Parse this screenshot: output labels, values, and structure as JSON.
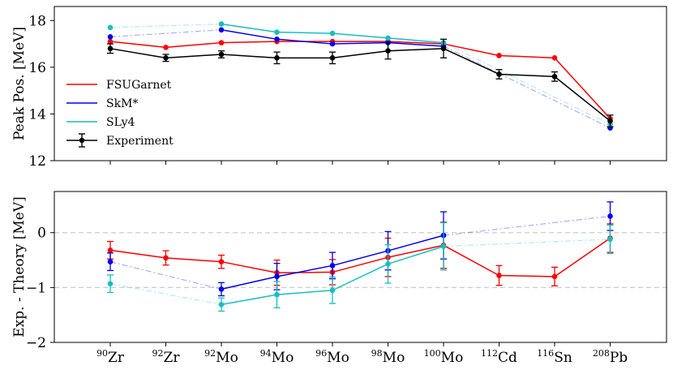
{
  "chart_data": [
    {
      "type": "line",
      "panel": "top",
      "title": "",
      "xlabel": "",
      "ylabel": "Peak Pos. [MeV]",
      "ylim": [
        12,
        18.6
      ],
      "yticks": [
        12,
        14,
        16,
        18
      ],
      "grid": false,
      "legend_position": "middle-left",
      "categories": [
        "90Zr",
        "92Zr",
        "92Mo",
        "94Mo",
        "96Mo",
        "98Mo",
        "100Mo",
        "112Cd",
        "116Sn",
        "208Pb"
      ],
      "series": [
        {
          "name": "FSUGarnet",
          "color": "#ff0000",
          "points": [
            [
              0,
              17.1
            ],
            [
              1,
              16.85
            ],
            [
              2,
              17.05
            ],
            [
              3,
              17.1
            ],
            [
              4,
              17.1
            ],
            [
              5,
              17.1
            ],
            [
              6,
              17.0
            ],
            [
              7,
              16.5
            ],
            [
              8,
              16.4
            ],
            [
              9,
              13.8
            ]
          ],
          "dashed_links": []
        },
        {
          "name": "SkM*",
          "color": "#0000ee",
          "points": [
            [
              0,
              17.3
            ],
            [
              2,
              17.6
            ],
            [
              3,
              17.2
            ],
            [
              4,
              17.0
            ],
            [
              5,
              17.05
            ],
            [
              6,
              16.9
            ],
            [
              9,
              13.4
            ]
          ],
          "dashed_links": [
            [
              0,
              2
            ],
            [
              6,
              9
            ]
          ]
        },
        {
          "name": "SLy4",
          "color": "#17bfbf",
          "points": [
            [
              0,
              17.7
            ],
            [
              2,
              17.85
            ],
            [
              3,
              17.5
            ],
            [
              4,
              17.45
            ],
            [
              5,
              17.25
            ],
            [
              6,
              17.05
            ],
            [
              9,
              13.55
            ]
          ],
          "dashed_links": [
            [
              0,
              2
            ],
            [
              6,
              9
            ]
          ]
        },
        {
          "name": "Experiment",
          "color": "#000000",
          "points": [
            [
              0,
              16.8,
              0.2
            ],
            [
              1,
              16.4,
              0.15
            ],
            [
              2,
              16.55,
              0.15
            ],
            [
              3,
              16.4,
              0.25
            ],
            [
              4,
              16.4,
              0.25
            ],
            [
              5,
              16.7,
              0.35
            ],
            [
              6,
              16.8,
              0.4
            ],
            [
              7,
              15.7,
              0.2
            ],
            [
              8,
              15.6,
              0.2
            ],
            [
              9,
              13.7,
              0.25
            ]
          ],
          "dashed_links": []
        }
      ]
    },
    {
      "type": "line",
      "panel": "bottom",
      "title": "",
      "xlabel": "",
      "ylabel": "Exp. - Theory [MeV]",
      "ylim": [
        -2,
        0.75
      ],
      "yticks": [
        -2,
        -1,
        0
      ],
      "ytick_labels": [
        "−2",
        "−1",
        "0"
      ],
      "reference_lines": [
        0,
        -1
      ],
      "grid": false,
      "categories": [
        "90Zr",
        "92Zr",
        "92Mo",
        "94Mo",
        "96Mo",
        "98Mo",
        "100Mo",
        "112Cd",
        "116Sn",
        "208Pb"
      ],
      "series": [
        {
          "name": "FSUGarnet",
          "color": "#ff0000",
          "points": [
            [
              0,
              -0.32,
              0.16
            ],
            [
              1,
              -0.46,
              0.13
            ],
            [
              2,
              -0.53,
              0.12
            ],
            [
              3,
              -0.73,
              0.23
            ],
            [
              4,
              -0.72,
              0.23
            ],
            [
              5,
              -0.45,
              0.35
            ],
            [
              6,
              -0.23,
              0.42
            ],
            [
              7,
              -0.78,
              0.18
            ],
            [
              8,
              -0.8,
              0.17
            ],
            [
              9,
              -0.1,
              0.26
            ]
          ],
          "dashed_links": []
        },
        {
          "name": "SkM*",
          "color": "#0000ee",
          "points": [
            [
              0,
              -0.53,
              0.16
            ],
            [
              2,
              -1.03,
              0.12
            ],
            [
              3,
              -0.8,
              0.24
            ],
            [
              4,
              -0.6,
              0.24
            ],
            [
              5,
              -0.33,
              0.35
            ],
            [
              6,
              -0.05,
              0.43
            ],
            [
              9,
              0.3,
              0.26
            ]
          ],
          "dashed_links": [
            [
              0,
              2
            ],
            [
              6,
              9
            ]
          ]
        },
        {
          "name": "SLy4",
          "color": "#17bfbf",
          "points": [
            [
              0,
              -0.93,
              0.16
            ],
            [
              2,
              -1.31,
              0.12
            ],
            [
              3,
              -1.13,
              0.24
            ],
            [
              4,
              -1.05,
              0.24
            ],
            [
              5,
              -0.57,
              0.35
            ],
            [
              6,
              -0.25,
              0.43
            ],
            [
              9,
              -0.12,
              0.26
            ]
          ],
          "dashed_links": [
            [
              0,
              2
            ],
            [
              6,
              9
            ]
          ]
        }
      ]
    }
  ]
}
